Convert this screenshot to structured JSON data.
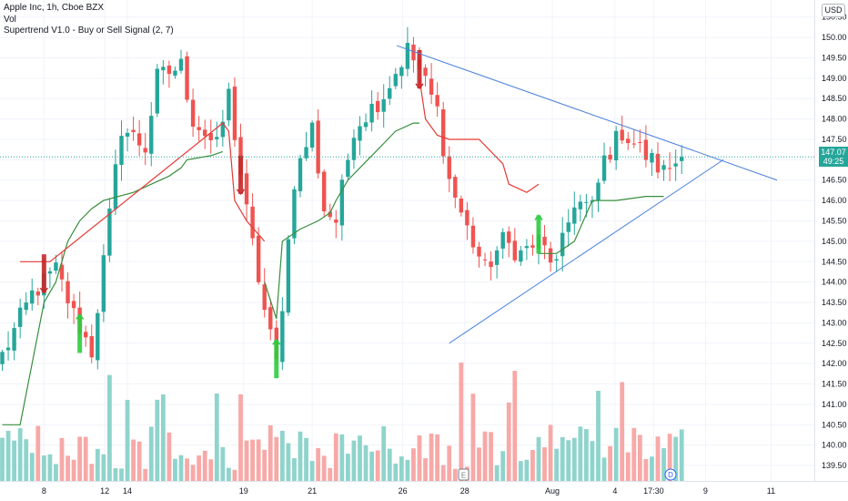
{
  "legend": {
    "symbol": "Apple Inc, 1h, Cboe BZX",
    "vol": "Vol",
    "indicator": "Supertrend V1.0 - Buy or Sell Signal (2, 7)"
  },
  "currency": "USD",
  "last_price": {
    "price": "147.07",
    "countdown": "49:25",
    "value": 147.07
  },
  "colors": {
    "up": "#26a69a",
    "down": "#ef5350",
    "vol_up": "#8fd4cc",
    "vol_down": "#f7a9a7",
    "supertrend_up": "#388e3c",
    "supertrend_down": "#e53935",
    "trendline": "#4a7fdc",
    "last_price_line": "#26a69a"
  },
  "chart_data": {
    "type": "candlestick",
    "y_range": [
      139.3,
      150.65
    ],
    "y_ticks": [
      "139.50",
      "140.00",
      "140.50",
      "141.00",
      "141.50",
      "142.00",
      "142.50",
      "143.00",
      "143.50",
      "144.00",
      "144.50",
      "145.00",
      "145.50",
      "146.00",
      "146.50",
      "147.00",
      "147.50",
      "148.00",
      "148.50",
      "149.00",
      "149.50",
      "150.00",
      "150.50"
    ],
    "x_ticks": [
      "8",
      "12",
      "14",
      "19",
      "21",
      "26",
      "28",
      "Aug",
      "4",
      "17:30",
      "9",
      "11"
    ],
    "n_bars": 115,
    "close_path": [
      [
        0,
        142.2
      ],
      [
        5,
        143.7
      ],
      [
        9,
        144.3
      ],
      [
        12,
        143.2
      ],
      [
        15,
        142.3
      ],
      [
        20,
        147.8
      ],
      [
        24,
        147.3
      ],
      [
        26,
        149.0
      ],
      [
        30,
        149.3
      ],
      [
        32,
        148.0
      ],
      [
        36,
        147.3
      ],
      [
        38,
        148.6
      ],
      [
        41,
        145.7
      ],
      [
        44,
        143.3
      ],
      [
        46,
        142.0
      ],
      [
        49,
        146.5
      ],
      [
        52,
        147.8
      ],
      [
        54,
        145.8
      ],
      [
        56,
        145.5
      ],
      [
        59,
        147.8
      ],
      [
        64,
        148.6
      ],
      [
        68,
        149.7
      ],
      [
        70,
        149.2
      ],
      [
        73,
        148.2
      ],
      [
        75,
        146.5
      ],
      [
        78,
        145.3
      ],
      [
        81,
        144.3
      ],
      [
        84,
        145.0
      ],
      [
        87,
        144.7
      ],
      [
        90,
        145.0
      ],
      [
        93,
        144.4
      ],
      [
        96,
        146.0
      ],
      [
        99,
        145.8
      ],
      [
        101,
        147.0
      ],
      [
        104,
        147.7
      ],
      [
        108,
        147.1
      ],
      [
        111,
        146.7
      ],
      [
        114,
        147.07
      ]
    ],
    "supertrend": [
      {
        "trend": "up",
        "points": [
          [
            0,
            140.5
          ],
          [
            3,
            140.5
          ],
          [
            7,
            143.5
          ],
          [
            9,
            144.0
          ],
          [
            11,
            145.0
          ],
          [
            13,
            145.5
          ],
          [
            15,
            145.8
          ],
          [
            17,
            146.0
          ],
          [
            22,
            146.2
          ],
          [
            25,
            146.4
          ],
          [
            28,
            146.6
          ],
          [
            30,
            146.8
          ],
          [
            31,
            147.0
          ],
          [
            35,
            147.1
          ],
          [
            37,
            147.2
          ]
        ]
      },
      {
        "trend": "down",
        "points": [
          [
            3,
            144.5
          ],
          [
            7,
            144.5
          ],
          [
            8,
            144.5
          ],
          [
            37,
            147.9
          ],
          [
            38,
            147.7
          ],
          [
            39,
            146.0
          ],
          [
            41,
            145.5
          ],
          [
            44,
            145.0
          ]
        ]
      },
      {
        "trend": "up",
        "points": [
          [
            44,
            144.0
          ],
          [
            46,
            143.1
          ],
          [
            47,
            145.0
          ],
          [
            50,
            145.3
          ],
          [
            53,
            145.5
          ],
          [
            55,
            145.7
          ],
          [
            56,
            146.0
          ],
          [
            58,
            146.5
          ],
          [
            60,
            146.8
          ],
          [
            62,
            147.1
          ],
          [
            64,
            147.4
          ],
          [
            66,
            147.7
          ],
          [
            69,
            147.9
          ],
          [
            70,
            147.9
          ]
        ]
      },
      {
        "trend": "down",
        "points": [
          [
            70,
            149.0
          ],
          [
            71,
            148.0
          ],
          [
            73,
            147.6
          ],
          [
            75,
            147.5
          ],
          [
            80,
            147.5
          ],
          [
            84,
            146.9
          ],
          [
            85,
            146.4
          ],
          [
            88,
            146.2
          ],
          [
            90,
            146.4
          ]
        ]
      },
      {
        "trend": "up",
        "points": [
          [
            90,
            144.7
          ],
          [
            93,
            144.7
          ],
          [
            96,
            145.0
          ],
          [
            99,
            146.0
          ],
          [
            103,
            146.0
          ],
          [
            108,
            146.1
          ],
          [
            111,
            146.1
          ]
        ]
      }
    ],
    "signals": [
      {
        "bar": 7,
        "type": "sell"
      },
      {
        "bar": 13,
        "type": "buy"
      },
      {
        "bar": 40,
        "type": "sell"
      },
      {
        "bar": 46,
        "type": "buy"
      },
      {
        "bar": 70,
        "type": "sell"
      },
      {
        "bar": 90,
        "type": "buy"
      }
    ],
    "trendlines": [
      {
        "from": [
          66.2,
          149.8
        ],
        "to": [
          130,
          146.5
        ]
      },
      {
        "from": [
          75,
          142.5
        ],
        "to": [
          121,
          147.0
        ]
      }
    ]
  }
}
